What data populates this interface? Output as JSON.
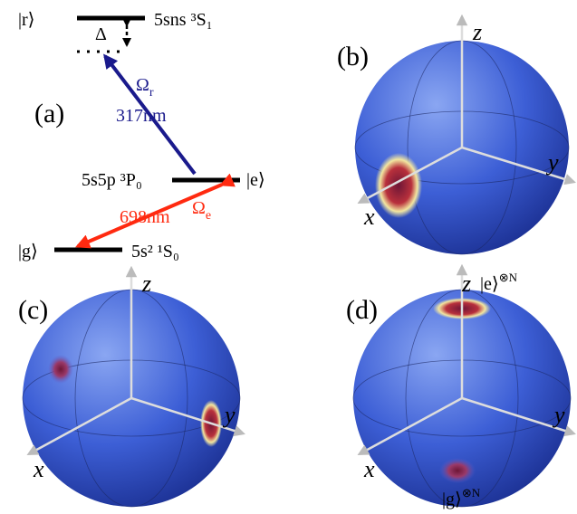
{
  "panel_a": {
    "label": "(a)",
    "level_r": {
      "ket": "|r⟩",
      "term": "5sns ³S₁"
    },
    "level_e": {
      "ket": "|e⟩",
      "term": "5s5p ³P₀"
    },
    "level_g": {
      "ket": "|g⟩",
      "term": "5s² ¹S₀"
    },
    "detuning": "Δ",
    "upper_transition": {
      "symbol": "Ω",
      "subscript": "r",
      "wavelength": "317nm"
    },
    "lower_transition": {
      "symbol": "Ω",
      "subscript": "e",
      "wavelength": "698nm"
    }
  },
  "panel_b": {
    "label": "(b)",
    "x_axis": "x",
    "y_axis": "y",
    "z_axis": "z"
  },
  "panel_c": {
    "label": "(c)",
    "x_axis": "x",
    "y_axis": "y",
    "z_axis": "z"
  },
  "panel_d": {
    "label": "(d)",
    "x_axis": "x",
    "y_axis": "y",
    "z_axis": "z",
    "north_state": {
      "ket": "|e⟩",
      "superscript": "⊗N"
    },
    "south_state": {
      "ket": "|g⟩",
      "superscript": "⊗N"
    }
  }
}
